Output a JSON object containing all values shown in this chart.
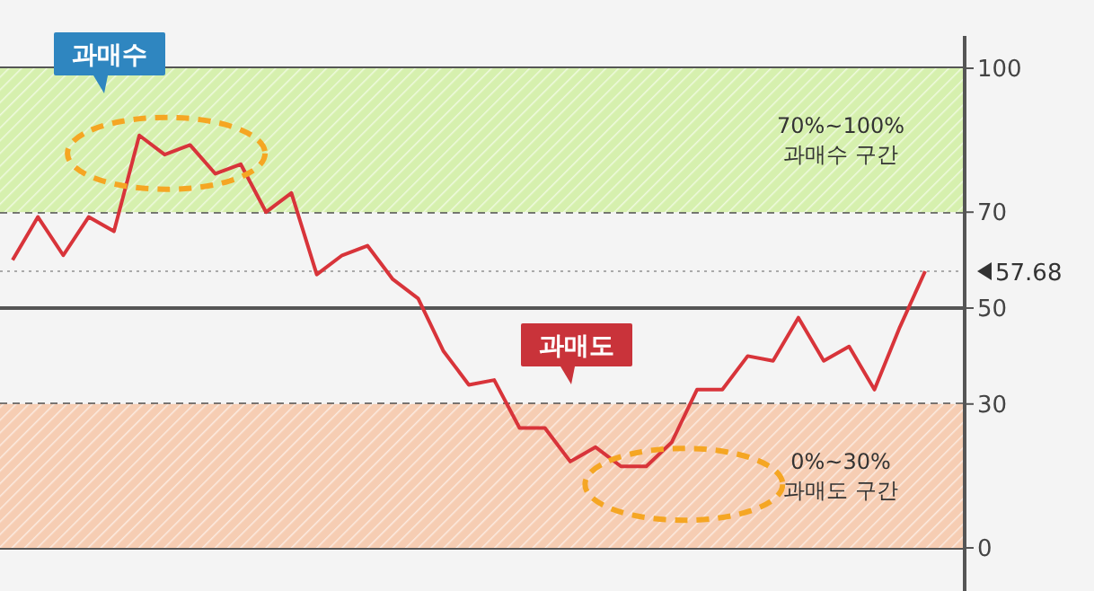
{
  "chart_data": {
    "type": "line",
    "categories": [
      null,
      null,
      null,
      null,
      null,
      null,
      null,
      null,
      null,
      null,
      null,
      null,
      null,
      null,
      null,
      null,
      null,
      null,
      null,
      null,
      null,
      null,
      null,
      null,
      null,
      null,
      null,
      null,
      null,
      null,
      null,
      null,
      null,
      null,
      null,
      null,
      null
    ],
    "series": [
      {
        "color": "#d8343a",
        "values": [
          60,
          69,
          61,
          69,
          66,
          86,
          82,
          84,
          78,
          80,
          70,
          74,
          57,
          61,
          63,
          56,
          52,
          41,
          34,
          35,
          25,
          25,
          18,
          21,
          17,
          17,
          22,
          33,
          33,
          40,
          39,
          48,
          39,
          42,
          33,
          46,
          57.68
        ]
      }
    ],
    "ylim": [
      0,
      100
    ],
    "yticks": [
      0,
      30,
      50,
      70,
      100
    ],
    "tick_labels": "y",
    "marker": "none",
    "line_style": "solid",
    "bands": [
      {
        "axis": "y",
        "from": 70,
        "to": 100,
        "label": "70%~100%\n과매수 구간",
        "color": "#d6f0ae"
      },
      {
        "axis": "y",
        "from": 0,
        "to": 30,
        "label": "0%~30%\n과매도 구간",
        "color": "#f6cdb3"
      }
    ],
    "ref_lines": [
      {
        "axis": "y",
        "value": 57.68,
        "label": "57.68",
        "line_style": "dotted"
      },
      {
        "axis": "y",
        "value": 50,
        "line_style": "solid",
        "color": "#555555"
      }
    ],
    "annotations": [
      "과매수",
      "과매도"
    ]
  }
}
